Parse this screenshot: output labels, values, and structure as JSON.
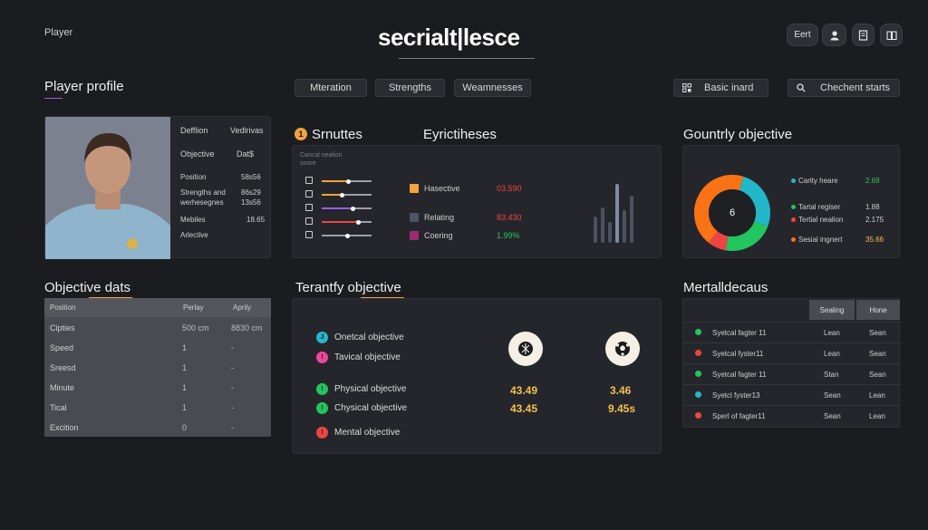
{
  "header": {
    "app_label": "Player",
    "logo": "secrialt|lesce",
    "exit_label": "Eert",
    "icons": [
      "user-icon",
      "document-icon",
      "book-icon"
    ]
  },
  "profile": {
    "title": "Player profile",
    "fields": [
      {
        "label": "Defflion",
        "value": "Vedlrivas"
      },
      {
        "label": "Objective",
        "value": "Dat$"
      },
      {
        "label": "Position",
        "value": "58s56"
      },
      {
        "label": "Strengths and werhesegnes",
        "value": "86s29\n13s56"
      },
      {
        "label": "Mebiles",
        "value": "18.65"
      },
      {
        "label": "Arlective",
        "value": ""
      }
    ]
  },
  "tabs": [
    "Mteration",
    "Strengths",
    "Weamnesses"
  ],
  "actions": {
    "basic_label": "Basic inard",
    "search_label": "Chechent starts"
  },
  "attributes": {
    "badge": "1",
    "title": "Srnuttes",
    "subtitle": "Eyrictiheses",
    "caption": "Cancal nealion\nsoore",
    "sliders": [
      {
        "fill": 0.52,
        "color": "#f2a33a"
      },
      {
        "fill": 0.4,
        "color": "#f2a33a"
      },
      {
        "fill": 0.62,
        "color": "#9b5de5"
      },
      {
        "fill": 0.72,
        "color": "#ef4444"
      },
      {
        "fill": 0.5,
        "color": "#9aa0a6"
      }
    ],
    "legend": [
      {
        "label": "Hasective",
        "value": "03.590",
        "color": "#f2a33a",
        "value_color": "#ef4444"
      },
      {
        "label": "Relating",
        "value": "83.430",
        "color": "#4b5563",
        "value_color": "#ef4444"
      },
      {
        "label": "Coering",
        "value": "1.99%",
        "color": "#9b2c6f",
        "value_color": "#22c55e"
      }
    ],
    "bars": [
      0.45,
      0.6,
      0.35,
      1.0,
      0.55,
      0.8
    ]
  },
  "country": {
    "title": "Gountrly objective",
    "center_value": "6",
    "slices": [
      {
        "label": "Carity heare",
        "value": "2.69",
        "fraction": 0.26,
        "color": "#22b8c7",
        "value_color": "#22c55e"
      },
      {
        "label": "Tartal regiser",
        "value": "1.88",
        "fraction": 0.22,
        "color": "#22c55e",
        "value_color": "#cfcfcf"
      },
      {
        "label": "Tertial nealion",
        "value": "2.175",
        "fraction": 0.08,
        "color": "#ef4444",
        "value_color": "#cfcfcf"
      },
      {
        "label": "Sesial ingnert",
        "value": "35.66",
        "fraction": 0.44,
        "color": "#f97316",
        "value_color": "#f2c14e"
      }
    ]
  },
  "objective_data": {
    "title": "Objective dats",
    "columns": [
      "Position",
      "Perlay",
      "Aprily"
    ],
    "rows": [
      {
        "name": "Cipties",
        "a": "500 cm",
        "b": "8830 cm"
      },
      {
        "name": "Speed",
        "a": "1",
        "b": "-"
      },
      {
        "name": "Sreesd",
        "a": "1",
        "b": "-"
      },
      {
        "name": "Minute",
        "a": "1",
        "b": "-"
      },
      {
        "name": "Tical",
        "a": "1",
        "b": "-"
      },
      {
        "name": "Excition",
        "a": "0",
        "b": "-"
      }
    ]
  },
  "tactical": {
    "title": "Terantfy objective",
    "items": [
      {
        "label": "Onetcal objective",
        "color": "#22b8c7",
        "glyph": "J"
      },
      {
        "label": "Tavical objective",
        "color": "#ec4899",
        "glyph": "!"
      },
      {
        "label": "Physical objective",
        "color": "#22c55e",
        "glyph": "!"
      },
      {
        "label": "Chysical objective",
        "color": "#22c55e",
        "glyph": "!"
      },
      {
        "label": "Mental objective",
        "color": "#ef4444",
        "glyph": "!"
      }
    ],
    "values_left": [
      "43.49",
      "43.45"
    ],
    "values_right": [
      "3.46",
      "9.45s"
    ],
    "icons": [
      "shield-icon",
      "soccer-ball-icon"
    ]
  },
  "mental": {
    "title": "Mertalldecaus",
    "col_a": "Sealing",
    "col_b": "Hone",
    "rows": [
      {
        "name": "Syetcal fagter 11",
        "a": "Lean",
        "b": "Sean",
        "color": "#22c55e"
      },
      {
        "name": "Syetcal fyster11",
        "a": "Lean",
        "b": "Sean",
        "color": "#ef4444"
      },
      {
        "name": "Syetcal fagter 11",
        "a": "Stan",
        "b": "Sean",
        "color": "#22c55e"
      },
      {
        "name": "Syetcl fyster13",
        "a": "Sean",
        "b": "Lean",
        "color": "#22b8c7"
      },
      {
        "name": "Sperl of fagter11",
        "a": "Sean",
        "b": "Lean",
        "color": "#ef4444"
      }
    ]
  }
}
